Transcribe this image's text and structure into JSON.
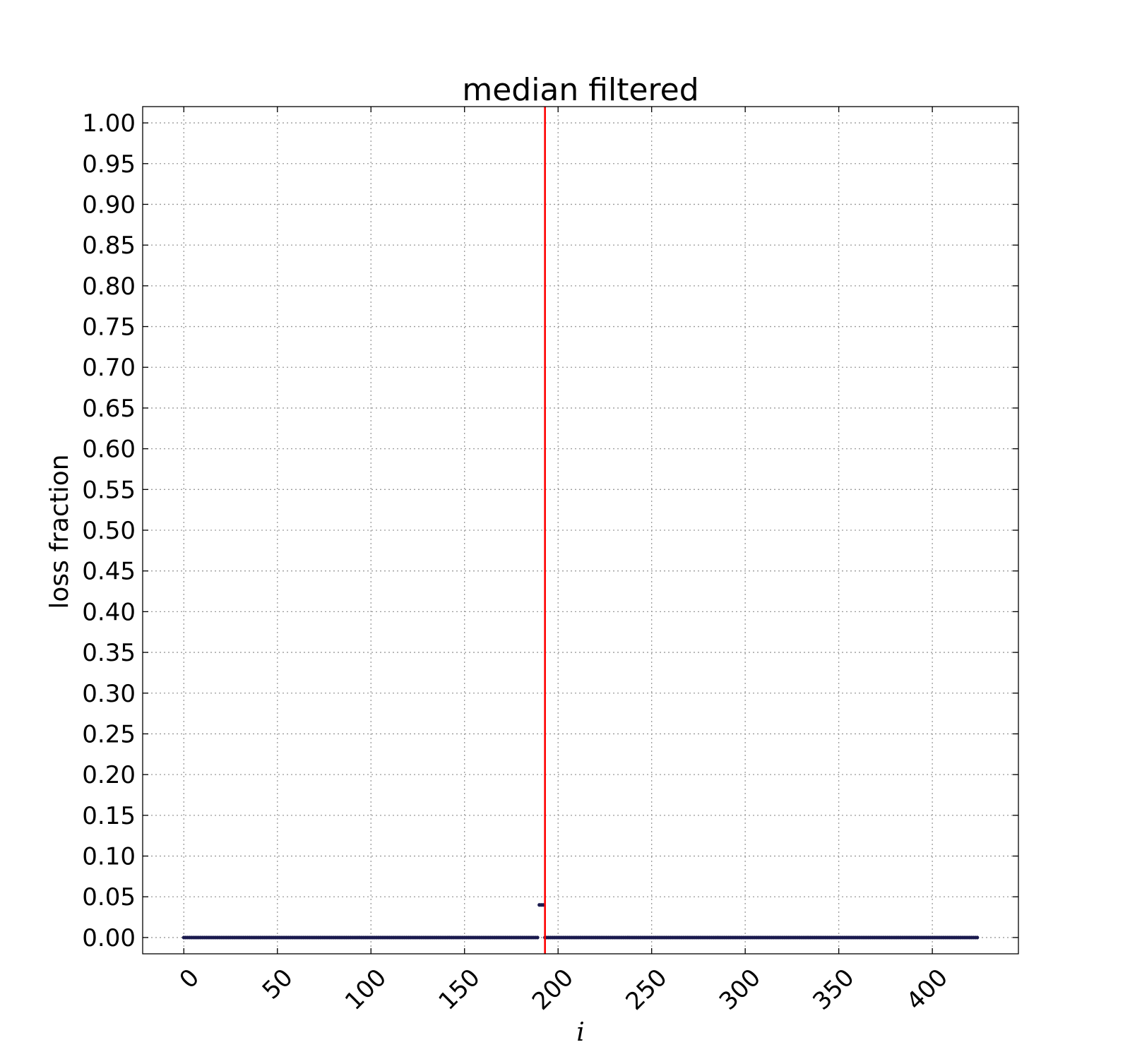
{
  "chart_data": {
    "type": "scatter",
    "title": "median filtered",
    "xlabel": "i",
    "ylabel": "loss fraction",
    "xlim": [
      -22,
      446
    ],
    "ylim": [
      -0.02,
      1.02
    ],
    "xticks": [
      0,
      50,
      100,
      150,
      200,
      250,
      300,
      350,
      400
    ],
    "xtick_labels": [
      "0",
      "50",
      "100",
      "150",
      "200",
      "250",
      "300",
      "350",
      "400"
    ],
    "yticks": [
      0,
      0.05,
      0.1,
      0.15,
      0.2,
      0.25,
      0.3,
      0.35,
      0.4,
      0.45,
      0.5,
      0.55,
      0.6,
      0.65,
      0.7,
      0.75,
      0.8,
      0.85,
      0.9,
      0.95,
      1.0
    ],
    "ytick_labels": [
      "0.00",
      "0.05",
      "0.10",
      "0.15",
      "0.20",
      "0.25",
      "0.30",
      "0.35",
      "0.40",
      "0.45",
      "0.50",
      "0.55",
      "0.60",
      "0.65",
      "0.70",
      "0.75",
      "0.80",
      "0.85",
      "0.90",
      "0.95",
      "1.00"
    ],
    "grid": true,
    "series": [
      {
        "color": "#1a1a4e",
        "segments": [
          {
            "x_start": 0,
            "x_end": 189,
            "y": 0.0
          },
          {
            "x_start": 190,
            "x_end": 192,
            "y": 0.04
          },
          {
            "x_start": 193,
            "x_end": 424,
            "y": 0.0
          }
        ]
      }
    ],
    "vertical_line": {
      "x": 193,
      "color": "#ff0000"
    }
  }
}
